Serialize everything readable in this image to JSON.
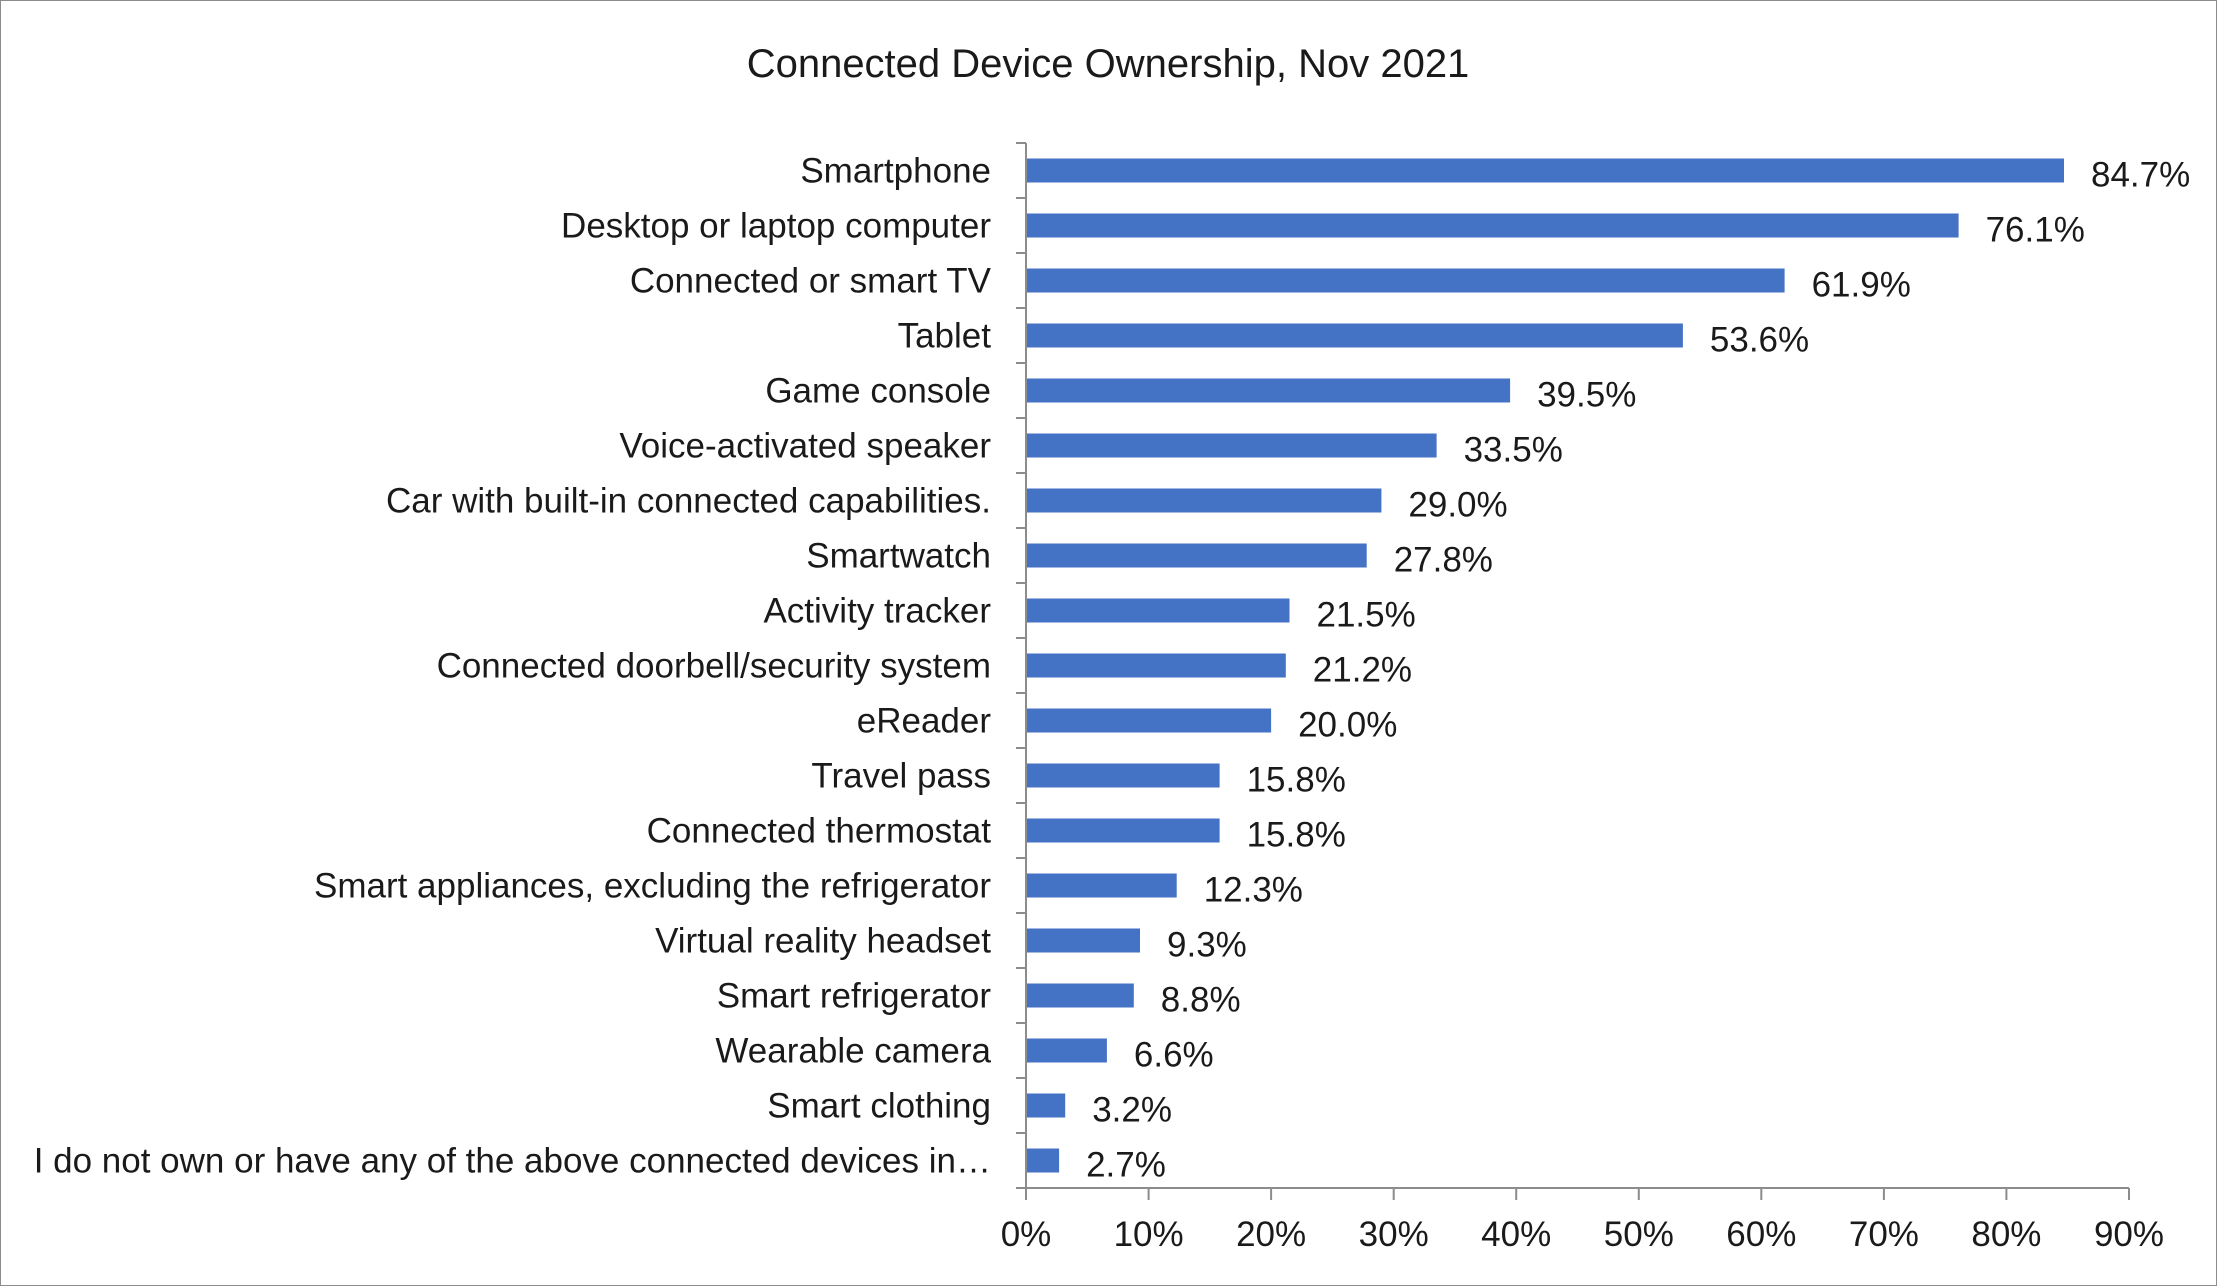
{
  "chart_data": {
    "type": "bar",
    "orientation": "horizontal",
    "title": "Connected Device Ownership, Nov 2021",
    "xlabel": "",
    "ylabel": "",
    "xlim": [
      0,
      90
    ],
    "x_ticks": [
      0,
      10,
      20,
      30,
      40,
      50,
      60,
      70,
      80,
      90
    ],
    "x_tick_labels": [
      "0%",
      "10%",
      "20%",
      "30%",
      "40%",
      "50%",
      "60%",
      "70%",
      "80%",
      "90%"
    ],
    "grid": false,
    "legend": "none",
    "bar_color": "#4472C4",
    "categories": [
      "Smartphone",
      "Desktop or laptop computer",
      "Connected or smart TV",
      "Tablet",
      "Game console",
      "Voice-activated speaker",
      "Car with built-in connected capabilities.",
      "Smartwatch",
      "Activity tracker",
      "Connected doorbell/security system",
      "eReader",
      "Travel pass",
      "Connected thermostat",
      "Smart appliances, excluding the refrigerator",
      "Virtual reality headset",
      "Smart refrigerator",
      "Wearable camera",
      "Smart clothing",
      "I do not own or have any of the above connected devices in…"
    ],
    "values": [
      84.7,
      76.1,
      61.9,
      53.6,
      39.5,
      33.5,
      29.0,
      27.8,
      21.5,
      21.2,
      20.0,
      15.8,
      15.8,
      12.3,
      9.3,
      8.8,
      6.6,
      3.2,
      2.7
    ],
    "data_labels": [
      "84.7%",
      "76.1%",
      "61.9%",
      "53.6%",
      "39.5%",
      "33.5%",
      "29.0%",
      "27.8%",
      "21.5%",
      "21.2%",
      "20.0%",
      "15.8%",
      "15.8%",
      "12.3%",
      "9.3%",
      "8.8%",
      "6.6%",
      "3.2%",
      "2.7%"
    ]
  }
}
